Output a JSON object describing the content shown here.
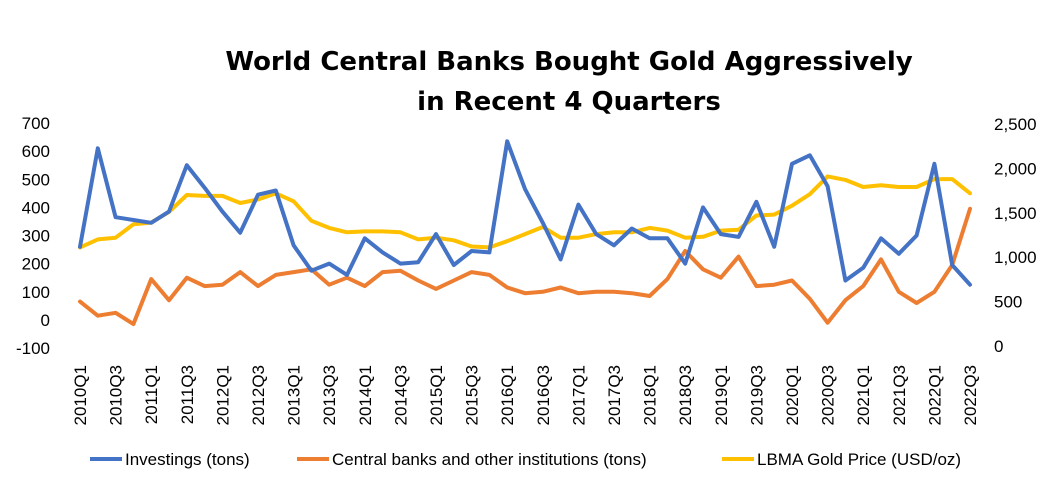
{
  "chart_data": {
    "type": "line",
    "title": [
      "World Central Banks Bought Gold Aggressively",
      "in Recent 4 Quarters"
    ],
    "categories": [
      "2010Q1",
      "2010Q2",
      "2010Q3",
      "2010Q4",
      "2011Q1",
      "2011Q2",
      "2011Q3",
      "2011Q4",
      "2012Q1",
      "2012Q2",
      "2012Q3",
      "2012Q4",
      "2013Q1",
      "2013Q2",
      "2013Q3",
      "2013Q4",
      "2014Q1",
      "2014Q2",
      "2014Q3",
      "2014Q4",
      "2015Q1",
      "2015Q2",
      "2015Q3",
      "2015Q4",
      "2016Q1",
      "2016Q2",
      "2016Q3",
      "2016Q4",
      "2017Q1",
      "2017Q2",
      "2017Q3",
      "2017Q4",
      "2018Q1",
      "2018Q2",
      "2018Q3",
      "2018Q4",
      "2019Q1",
      "2019Q2",
      "2019Q3",
      "2019Q4",
      "2020Q1",
      "2020Q2",
      "2020Q3",
      "2020Q4",
      "2021Q1",
      "2021Q2",
      "2021Q3",
      "2021Q4",
      "2022Q1",
      "2022Q2",
      "2022Q3"
    ],
    "x_tick_labels": [
      "2010Q1",
      "2010Q3",
      "2011Q1",
      "2011Q3",
      "2012Q1",
      "2012Q3",
      "2013Q1",
      "2013Q3",
      "2014Q1",
      "2014Q3",
      "2015Q1",
      "2015Q3",
      "2016Q1",
      "2016Q3",
      "2017Q1",
      "2017Q3",
      "2018Q1",
      "2018Q3",
      "2019Q1",
      "2019Q3",
      "2020Q1",
      "2020Q3",
      "2021Q1",
      "2021Q3",
      "2022Q1",
      "2022Q3"
    ],
    "y_left": {
      "ylim": [
        -100,
        700
      ],
      "ticks": [
        -100,
        0,
        100,
        200,
        300,
        400,
        500,
        600,
        700
      ],
      "labels": [
        "-100",
        "0",
        "100",
        "200",
        "300",
        "400",
        "500",
        "600",
        "700"
      ]
    },
    "y_right": {
      "ylim": [
        0,
        2500
      ],
      "ticks": [
        0,
        500,
        1000,
        1500,
        2000,
        2500
      ],
      "labels": [
        "0",
        "500",
        "1,000",
        "1,500",
        "2,000",
        "2,500"
      ]
    },
    "series": [
      {
        "name": "Investings (tons)",
        "axis": "left",
        "color": "#4472C4",
        "values": [
          260,
          610,
          365,
          355,
          345,
          385,
          550,
          470,
          385,
          310,
          445,
          460,
          265,
          175,
          200,
          160,
          290,
          240,
          200,
          205,
          305,
          195,
          245,
          240,
          635,
          465,
          345,
          215,
          410,
          305,
          265,
          325,
          290,
          290,
          200,
          400,
          305,
          295,
          420,
          260,
          555,
          585,
          475,
          140,
          185,
          290,
          235,
          300,
          555,
          195,
          125
        ]
      },
      {
        "name": "Central banks and other institutions (tons)",
        "axis": "left",
        "color": "#ED7D31",
        "values": [
          65,
          15,
          25,
          -15,
          145,
          70,
          150,
          120,
          125,
          170,
          120,
          160,
          170,
          180,
          125,
          150,
          120,
          170,
          175,
          140,
          110,
          140,
          170,
          160,
          115,
          95,
          100,
          115,
          95,
          100,
          100,
          95,
          85,
          145,
          245,
          180,
          150,
          225,
          120,
          125,
          140,
          75,
          -10,
          70,
          120,
          215,
          100,
          60,
          100,
          195,
          395
        ]
      },
      {
        "name": "LBMA Gold Price (USD/oz)",
        "axis": "right",
        "color": "#FFC000",
        "values": [
          1110,
          1200,
          1220,
          1370,
          1390,
          1510,
          1700,
          1690,
          1690,
          1610,
          1650,
          1720,
          1630,
          1410,
          1330,
          1280,
          1290,
          1290,
          1280,
          1200,
          1220,
          1190,
          1120,
          1110,
          1180,
          1260,
          1340,
          1220,
          1220,
          1260,
          1280,
          1280,
          1330,
          1300,
          1220,
          1230,
          1300,
          1310,
          1470,
          1480,
          1580,
          1710,
          1910,
          1870,
          1790,
          1810,
          1790,
          1790,
          1880,
          1880,
          1720
        ]
      }
    ]
  }
}
